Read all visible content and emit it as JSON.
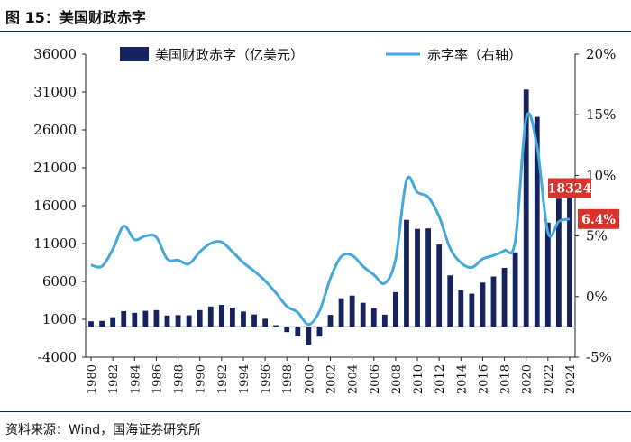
{
  "figure": {
    "title": "图 15：美国财政赤字",
    "source": "资料来源：Wind，国海证券研究所"
  },
  "chart_data": {
    "type": "bar+line",
    "title": "美国财政赤字",
    "x_label": "",
    "categories": [
      "1980",
      "1981",
      "1982",
      "1983",
      "1984",
      "1985",
      "1986",
      "1987",
      "1988",
      "1989",
      "1990",
      "1991",
      "1992",
      "1993",
      "1994",
      "1995",
      "1996",
      "1997",
      "1998",
      "1999",
      "2000",
      "2001",
      "2002",
      "2003",
      "2004",
      "2005",
      "2006",
      "2007",
      "2008",
      "2009",
      "2010",
      "2011",
      "2012",
      "2013",
      "2014",
      "2015",
      "2016",
      "2017",
      "2018",
      "2019",
      "2020",
      "2021",
      "2022",
      "2023",
      "2024"
    ],
    "x_tick_labels": [
      "1980",
      "1982",
      "1984",
      "1986",
      "1988",
      "1990",
      "1992",
      "1994",
      "1996",
      "1998",
      "2000",
      "2002",
      "2004",
      "2006",
      "2008",
      "2010",
      "2012",
      "2014",
      "2016",
      "2018",
      "2020",
      "2022",
      "2024"
    ],
    "series": [
      {
        "name": "美国财政赤字（亿美元）",
        "type": "bar",
        "axis": "left",
        "color": "#17235e",
        "values": [
          740,
          790,
          1280,
          2080,
          1850,
          2120,
          2210,
          1500,
          1550,
          1530,
          2210,
          2690,
          2900,
          2550,
          2030,
          1640,
          1070,
          220,
          -690,
          -1260,
          -2360,
          -1280,
          1580,
          3780,
          4130,
          3180,
          2480,
          1610,
          4590,
          14130,
          12940,
          13000,
          10870,
          6800,
          4850,
          4380,
          5850,
          6650,
          7790,
          9840,
          31320,
          27720,
          13760,
          16940,
          18324
        ]
      },
      {
        "name": "赤字率（右轴）",
        "type": "line",
        "axis": "right",
        "color": "#45a8db",
        "values": [
          2.6,
          2.5,
          3.9,
          5.8,
          4.7,
          5.0,
          4.9,
          3.1,
          3.0,
          2.7,
          3.7,
          4.4,
          4.5,
          3.7,
          2.8,
          2.1,
          1.3,
          0.3,
          -0.8,
          -1.3,
          -2.3,
          -1.2,
          1.5,
          3.3,
          3.4,
          2.5,
          1.8,
          1.1,
          3.1,
          9.6,
          8.6,
          8.2,
          6.6,
          4.0,
          2.8,
          2.4,
          3.1,
          3.4,
          3.8,
          4.6,
          14.7,
          12.4,
          5.3,
          6.2,
          6.4
        ]
      }
    ],
    "y_left": {
      "min": -4000,
      "max": 36000,
      "ticks": [
        -4000,
        1000,
        6000,
        11000,
        16000,
        21000,
        26000,
        31000,
        36000
      ]
    },
    "y_right": {
      "min": -5,
      "max": 20,
      "ticks": [
        -5,
        0,
        5,
        10,
        15,
        20
      ],
      "tick_labels": [
        "-5%",
        "0%",
        "5%",
        "10%",
        "15%",
        "20%"
      ]
    },
    "annotations": [
      {
        "text": "18324",
        "series": "bar",
        "year": "2024",
        "color": "#d9312b"
      },
      {
        "text": "6.4%",
        "series": "line",
        "year": "2024",
        "color": "#d9312b"
      }
    ],
    "legend_position": "top"
  }
}
